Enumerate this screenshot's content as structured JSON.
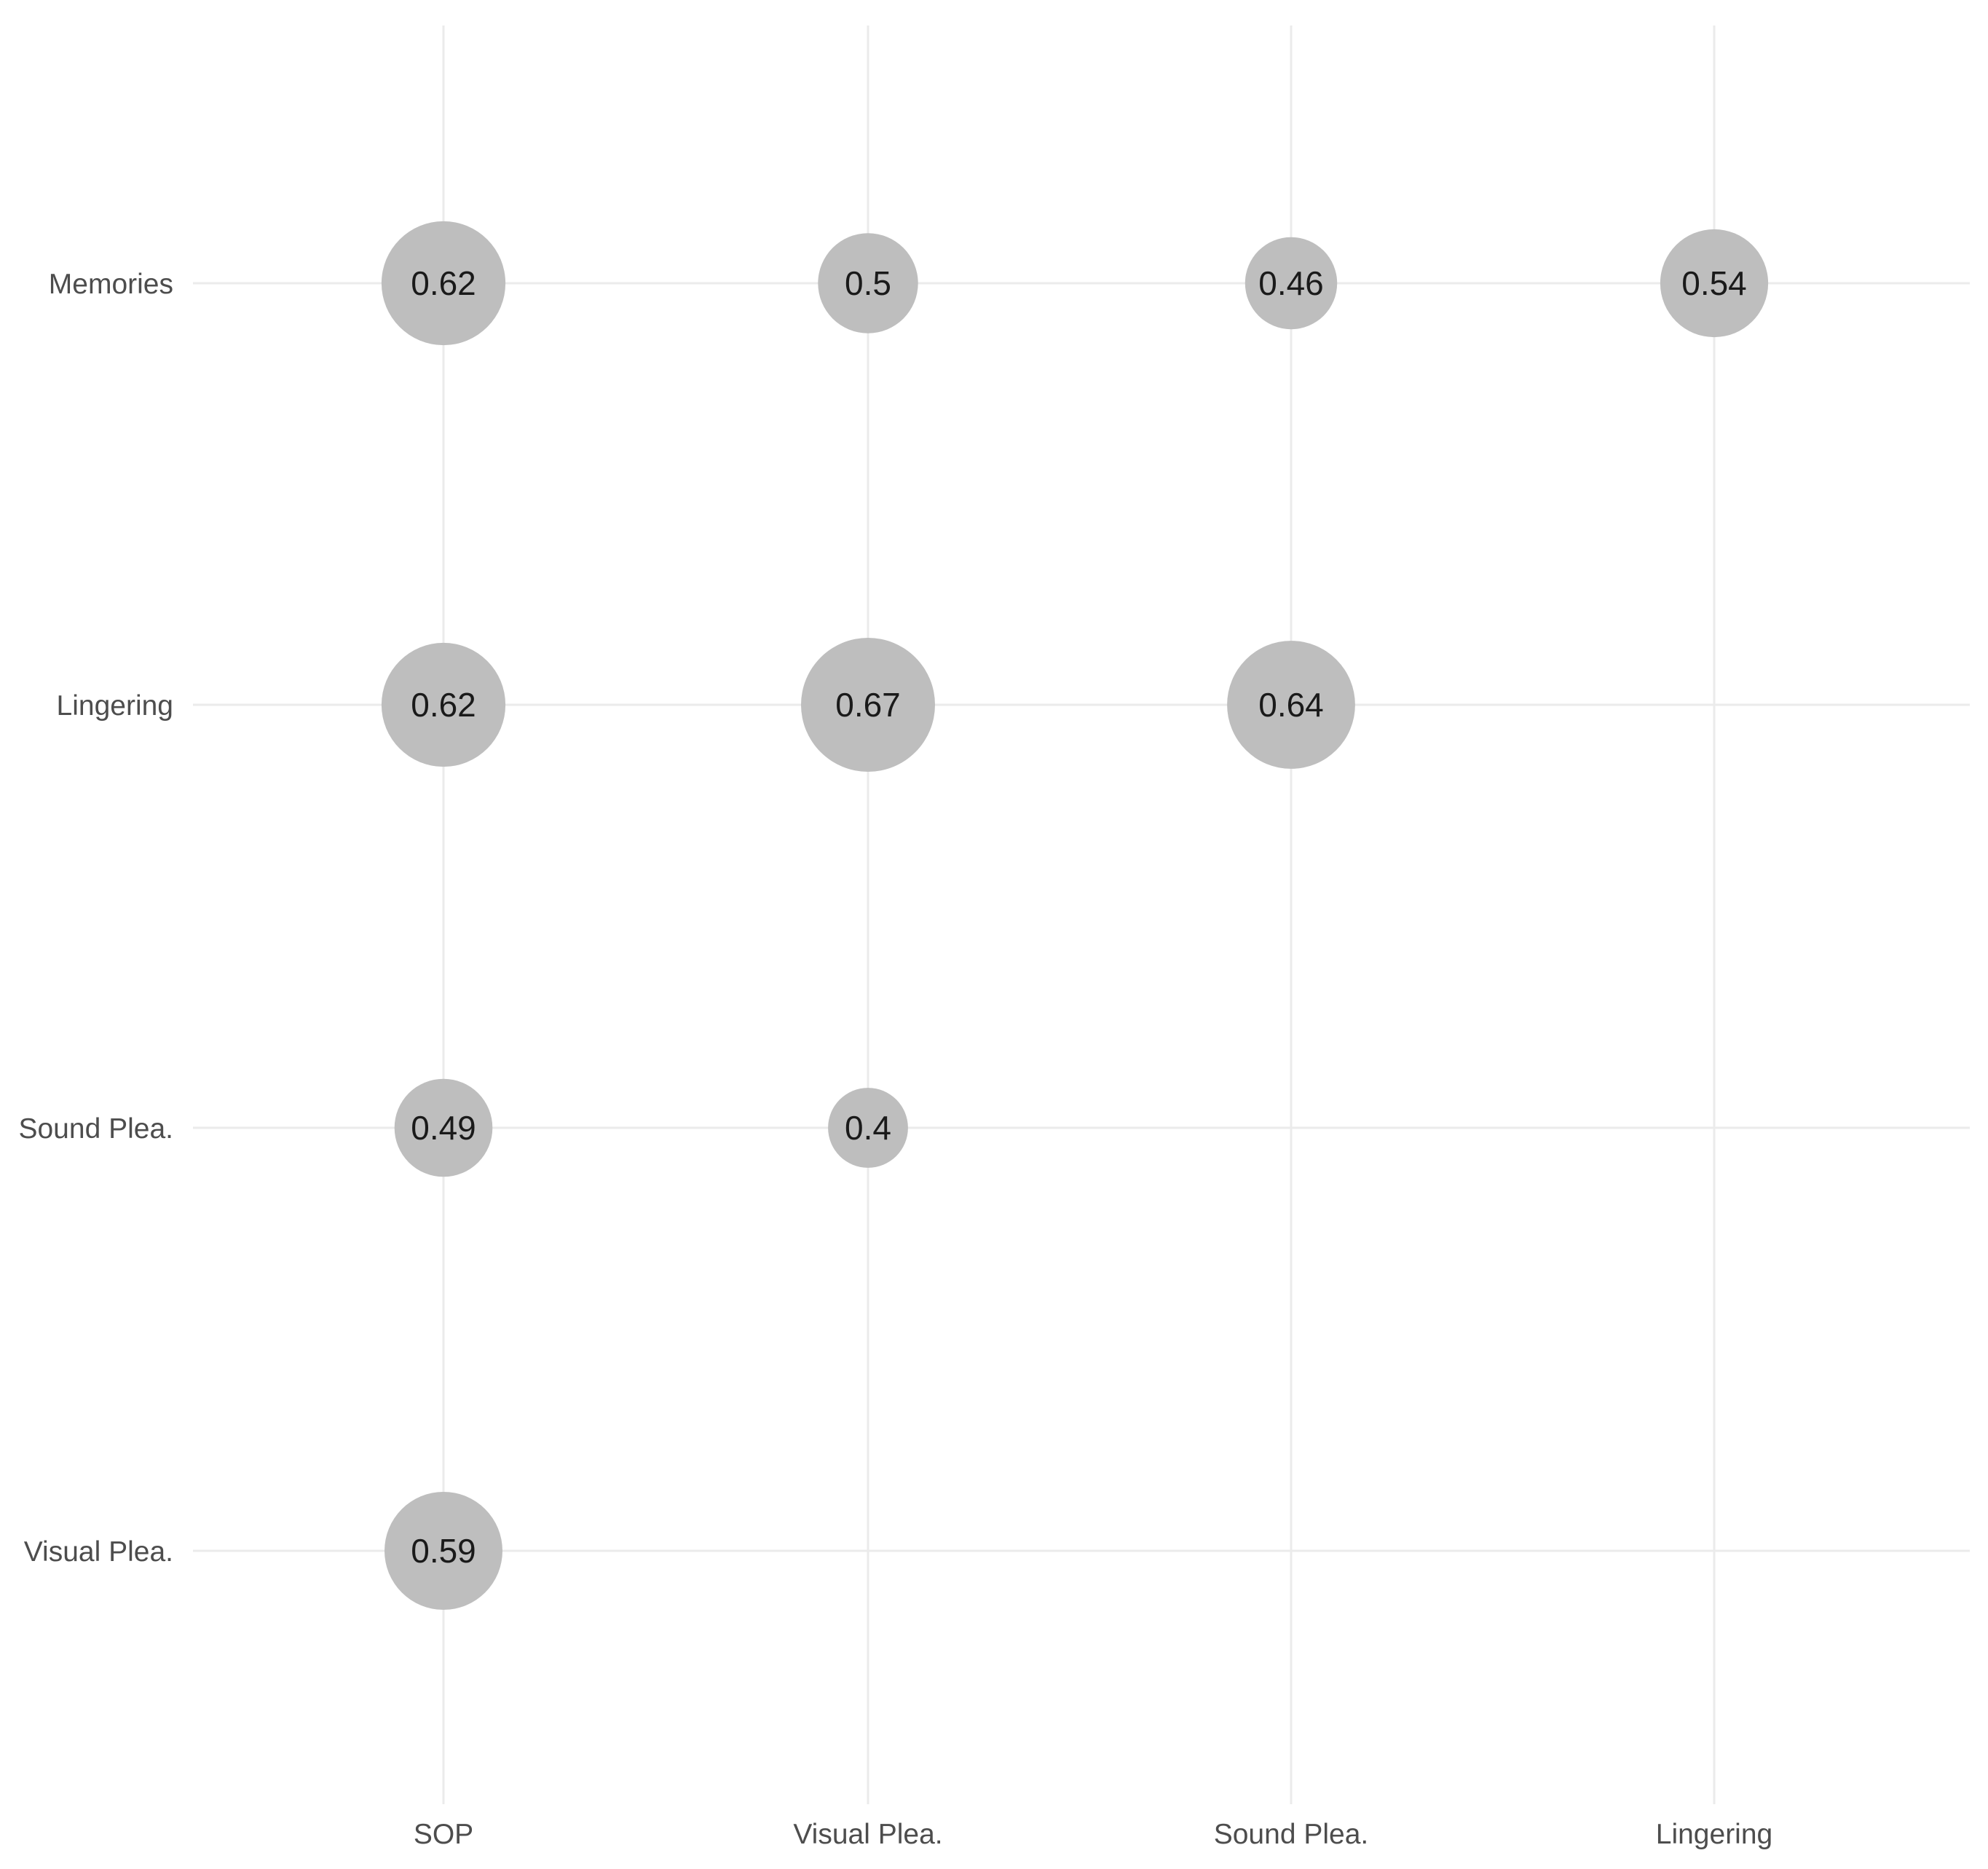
{
  "chart_data": {
    "type": "scatter",
    "subtype": "bubble-correlation-matrix",
    "x_categories": [
      "SOP",
      "Visual Plea.",
      "Sound Plea.",
      "Lingering"
    ],
    "y_categories": [
      "Memories",
      "Lingering",
      "Sound Plea.",
      "Visual Plea."
    ],
    "points": [
      {
        "x": "SOP",
        "y": "Memories",
        "value": 0.62,
        "label": "0.62"
      },
      {
        "x": "Visual Plea.",
        "y": "Memories",
        "value": 0.5,
        "label": "0.5"
      },
      {
        "x": "Sound Plea.",
        "y": "Memories",
        "value": 0.46,
        "label": "0.46"
      },
      {
        "x": "Lingering",
        "y": "Memories",
        "value": 0.54,
        "label": "0.54"
      },
      {
        "x": "SOP",
        "y": "Lingering",
        "value": 0.62,
        "label": "0.62"
      },
      {
        "x": "Visual Plea.",
        "y": "Lingering",
        "value": 0.67,
        "label": "0.67"
      },
      {
        "x": "Sound Plea.",
        "y": "Lingering",
        "value": 0.64,
        "label": "0.64"
      },
      {
        "x": "SOP",
        "y": "Sound Plea.",
        "value": 0.49,
        "label": "0.49"
      },
      {
        "x": "Visual Plea.",
        "y": "Sound Plea.",
        "value": 0.4,
        "label": "0.4"
      },
      {
        "x": "SOP",
        "y": "Visual Plea.",
        "value": 0.59,
        "label": "0.59"
      }
    ],
    "title": "",
    "xlabel": "",
    "ylabel": "",
    "grid": true,
    "legend": "none",
    "colors": {
      "bubble": "#bebebe",
      "grid": "#ebebeb",
      "axis_text": "#4d4d4d",
      "label_text": "#1a1a1a"
    }
  }
}
